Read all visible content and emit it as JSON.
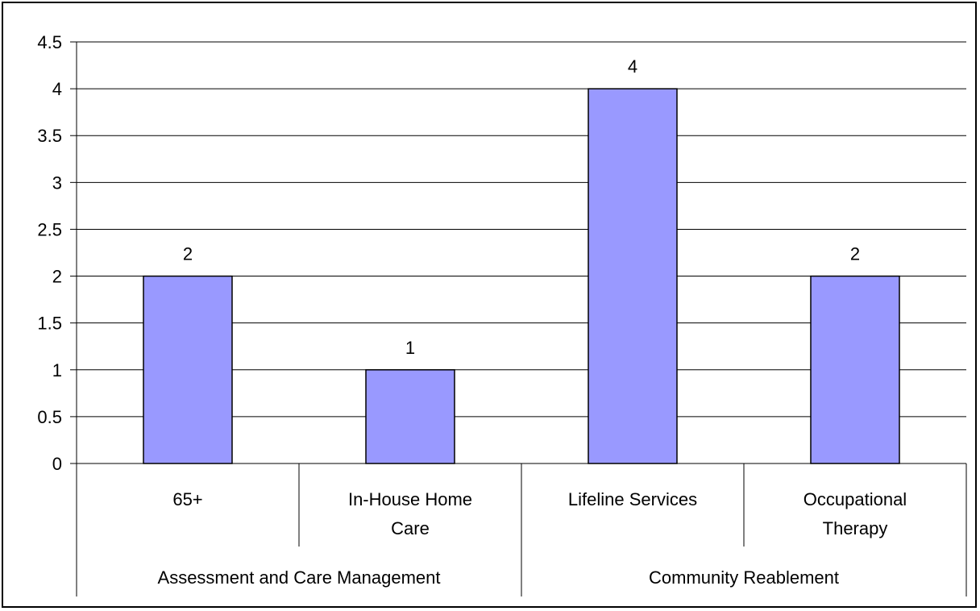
{
  "chart_data": {
    "type": "bar",
    "title": "",
    "xlabel": "",
    "ylabel": "",
    "ylim": [
      0,
      4.5
    ],
    "yticks": [
      "0",
      "0.5",
      "1",
      "1.5",
      "2",
      "2.5",
      "3",
      "3.5",
      "4",
      "4.5"
    ],
    "grid": true,
    "legend": "none",
    "bar_color": "#9999FF",
    "categories": [
      {
        "lines": [
          "65+"
        ],
        "value": 2,
        "label": "2"
      },
      {
        "lines": [
          "In-House Home",
          "Care"
        ],
        "value": 1,
        "label": "1"
      },
      {
        "lines": [
          "Lifeline Services"
        ],
        "value": 4,
        "label": "4"
      },
      {
        "lines": [
          "Occupational",
          "Therapy"
        ],
        "value": 2,
        "label": "2"
      }
    ],
    "groups": [
      {
        "label": "Assessment and Care Management",
        "span": 2
      },
      {
        "label": "Community Reablement",
        "span": 2
      }
    ]
  }
}
